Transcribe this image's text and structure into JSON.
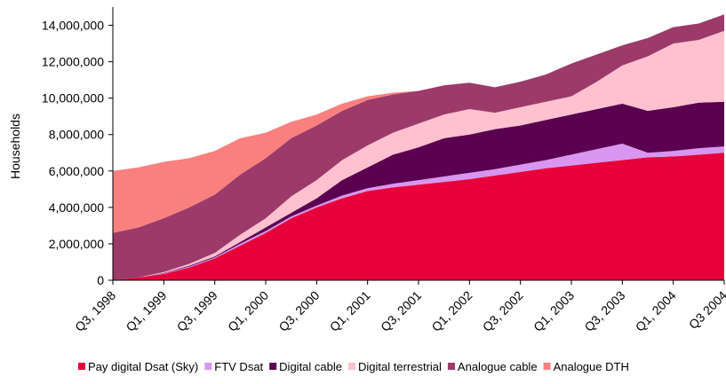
{
  "chart_data": {
    "type": "stacked-area",
    "y_label": "Households",
    "categories": [
      "Q3, 1998",
      null,
      "Q1, 1999",
      null,
      "Q3, 1999",
      null,
      "Q1, 2000",
      null,
      "Q3, 2000",
      null,
      "Q1, 2001",
      null,
      "Q3, 2001",
      null,
      "Q1, 2002",
      null,
      "Q3, 2002",
      null,
      "Q1, 2003",
      null,
      "Q3, 2003",
      null,
      "Q1, 2004",
      null,
      "Q3 2004"
    ],
    "series": [
      {
        "name": "Pay digital Dsat (Sky)",
        "color": "#e8003a",
        "values": [
          0,
          150000,
          350000,
          700000,
          1200000,
          1900000,
          2600000,
          3400000,
          4000000,
          4500000,
          4900000,
          5100000,
          5250000,
          5400000,
          5550000,
          5750000,
          5950000,
          6150000,
          6300000,
          6450000,
          6600000,
          6750000,
          6800000,
          6900000,
          7000000
        ]
      },
      {
        "name": "FTV Dsat",
        "color": "#d896f0",
        "values": [
          0,
          0,
          30000,
          50000,
          50000,
          100000,
          100000,
          100000,
          100000,
          150000,
          150000,
          200000,
          250000,
          300000,
          350000,
          350000,
          400000,
          450000,
          600000,
          750000,
          900000,
          250000,
          300000,
          350000,
          350000
        ]
      },
      {
        "name": "Digital cable",
        "color": "#5b0050",
        "values": [
          0,
          0,
          20000,
          50000,
          50000,
          100000,
          200000,
          200000,
          400000,
          850000,
          1150000,
          1600000,
          1800000,
          2100000,
          2100000,
          2200000,
          2150000,
          2200000,
          2200000,
          2200000,
          2200000,
          2300000,
          2400000,
          2500000,
          2450000
        ]
      },
      {
        "name": "Digital terrestrial",
        "color": "#ffc0d0",
        "values": [
          0,
          0,
          50000,
          100000,
          200000,
          400000,
          500000,
          900000,
          1000000,
          1100000,
          1200000,
          1200000,
          1300000,
          1300000,
          1400000,
          900000,
          1000000,
          1000000,
          1000000,
          1500000,
          2100000,
          3000000,
          3500000,
          3450000,
          3900000
        ]
      },
      {
        "name": "Analogue cable",
        "color": "#9c3a6a",
        "values": [
          2600000,
          2750000,
          2950000,
          3100000,
          3200000,
          3300000,
          3300000,
          3200000,
          3000000,
          2700000,
          2500000,
          2100000,
          1800000,
          1600000,
          1450000,
          1400000,
          1400000,
          1500000,
          1800000,
          1500000,
          1100000,
          1000000,
          900000,
          900000,
          900000
        ]
      },
      {
        "name": "Analogue DTH",
        "color": "#fa8080",
        "values": [
          3400000,
          3300000,
          3100000,
          2700000,
          2400000,
          2000000,
          1400000,
          900000,
          600000,
          400000,
          200000,
          100000,
          0,
          0,
          0,
          0,
          0,
          0,
          0,
          0,
          0,
          0,
          0,
          0,
          0
        ]
      }
    ],
    "ylim": [
      0,
      15000000
    ],
    "yticks": [
      0,
      {
        "value": 2000000,
        "label": "2,000,000"
      },
      {
        "value": 4000000,
        "label": "4,000,000"
      },
      {
        "value": 6000000,
        "label": "6,000,000"
      },
      {
        "value": 8000000,
        "label": "8,000,000"
      },
      {
        "value": 10000000,
        "label": "10,000,000"
      },
      {
        "value": 12000000,
        "label": "12,000,000"
      },
      {
        "value": 14000000,
        "label": "14,000,000"
      }
    ],
    "legend": "bottom"
  }
}
